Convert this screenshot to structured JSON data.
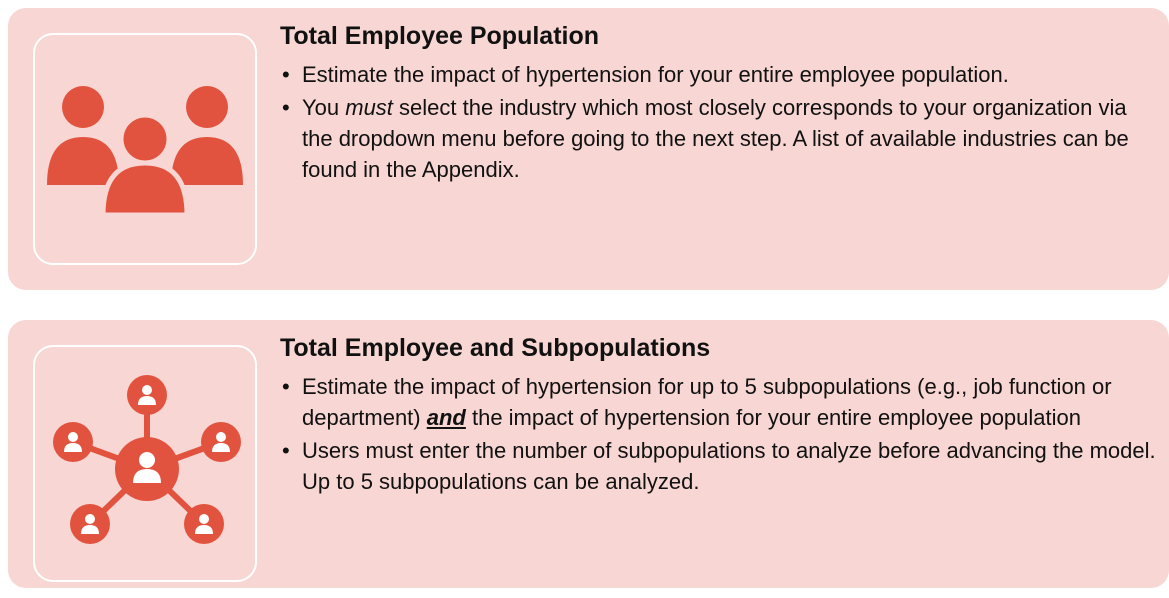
{
  "cards": [
    {
      "title": "Total Employee Population",
      "bullets": [
        [
          "Estimate the impact of hypertension for your entire employee population."
        ],
        [
          "You ",
          "must",
          " select the industry which most closely corresponds to your organization via the dropdown menu before going to the next step. A list of available industries can be found in the Appendix."
        ]
      ]
    },
    {
      "title": "Total Employee and Subpopulations",
      "bullets": [
        [
          "Estimate the impact of hypertension for up to 5 subpopulations (e.g., job function or department) ",
          "and",
          " the impact of hypertension for your entire employee population"
        ],
        [
          "Users must enter the number of subpopulations to analyze before advancing the model. Up to 5 subpopulations can be analyzed."
        ]
      ]
    }
  ]
}
